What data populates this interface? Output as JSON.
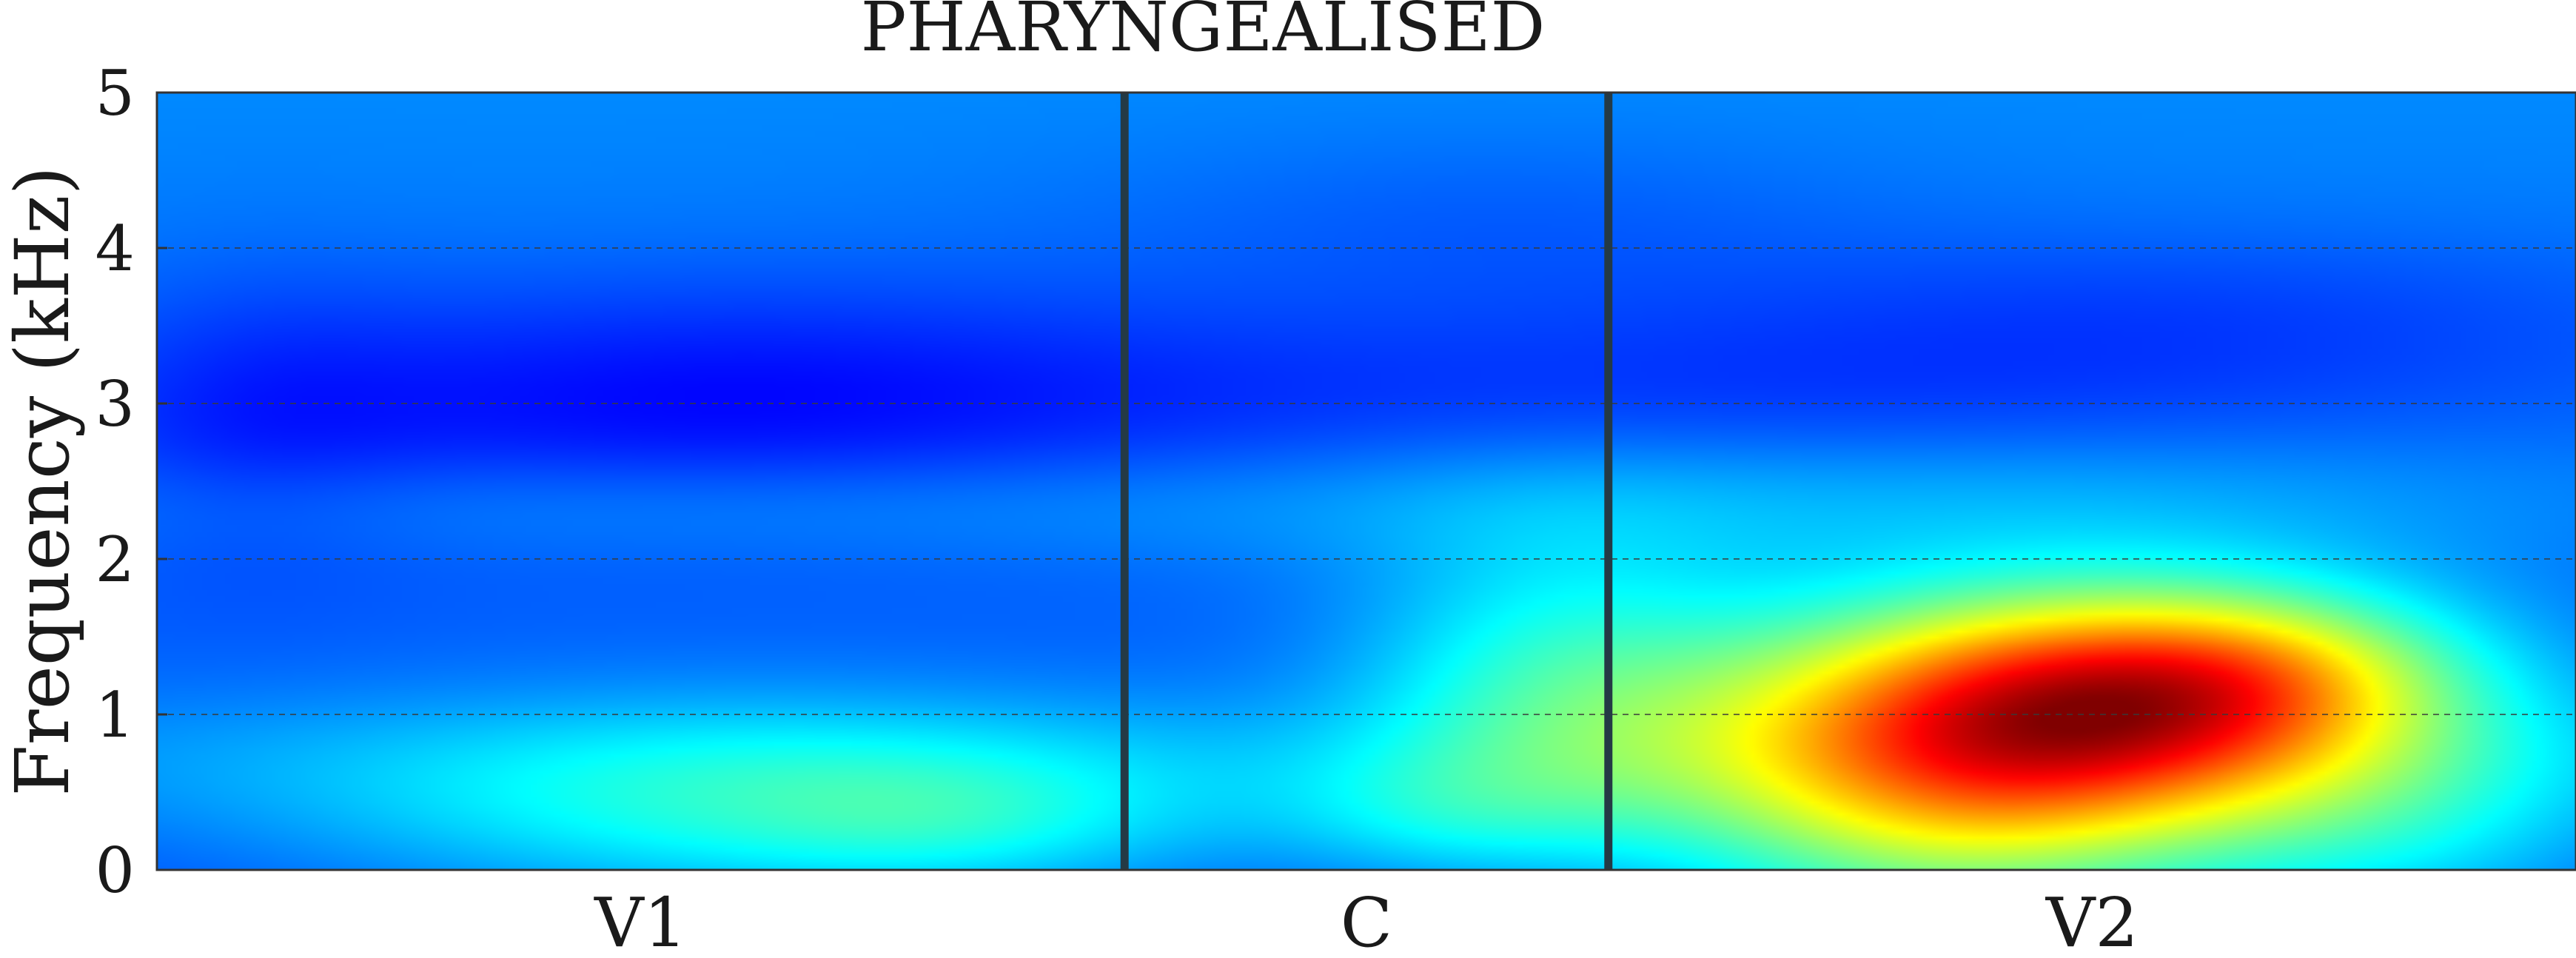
{
  "chart_data": {
    "type": "heatmap",
    "title": "PHARYNGEALISED",
    "ylabel": "Frequency (kHz)",
    "xlabel": "",
    "ylim": [
      0,
      5
    ],
    "y_ticks": [
      "0",
      "1",
      "2",
      "3",
      "4",
      "5"
    ],
    "segments": [
      {
        "label": "V1",
        "start": 0.0,
        "end": 0.4
      },
      {
        "label": "C",
        "start": 0.4,
        "end": 0.6
      },
      {
        "label": "V2",
        "start": 0.6,
        "end": 1.0
      }
    ],
    "boundaries": [
      0.4,
      0.6
    ],
    "grid": {
      "horizontal": true,
      "style": "dashed",
      "values": [
        1,
        2,
        3,
        4
      ]
    },
    "colormap": "jet",
    "energy_peaks": [
      {
        "segment": "V2",
        "time": 0.8,
        "frequency_khz": 1.1,
        "level": "high"
      },
      {
        "segment": "V2",
        "time": 0.74,
        "frequency_khz": 0.4,
        "level": "medium-high"
      },
      {
        "segment": "C",
        "time": 0.57,
        "frequency_khz": 1.2,
        "level": "medium"
      },
      {
        "segment": "V1",
        "time": 0.25,
        "frequency_khz": 0.4,
        "level": "medium-low"
      },
      {
        "segment": "V1",
        "time": 0.22,
        "frequency_khz": 3.0,
        "level": "low"
      }
    ]
  }
}
